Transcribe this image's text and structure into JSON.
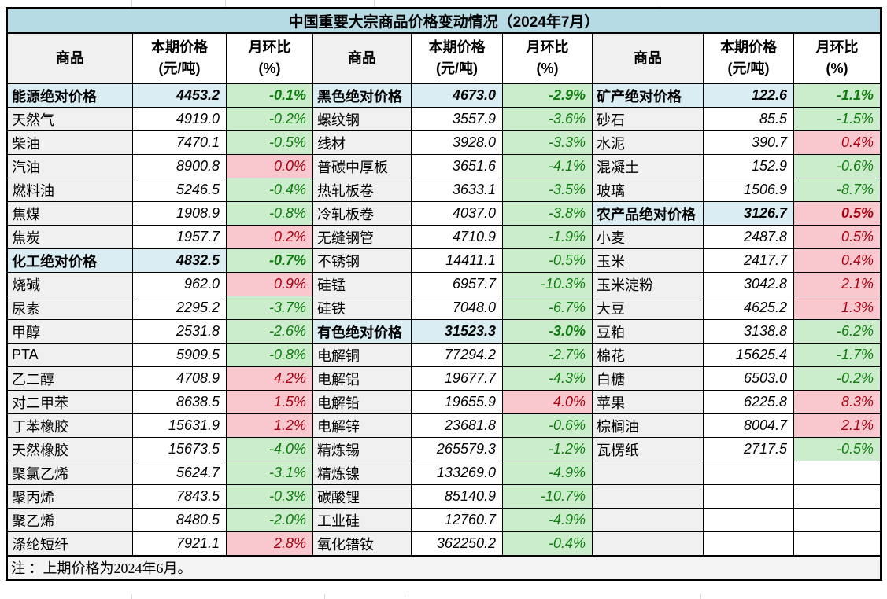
{
  "colors": {
    "title_bg": "#b6dbe4",
    "section_bg": "#d9edf3",
    "name_column_bg": "#f0f0f0",
    "decrease_bg": "#cbedcb",
    "decrease_text": "#0f7b0f",
    "increase_bg": "#f8c8ce",
    "increase_text": "#a60012",
    "border": "#000000"
  },
  "chart_data": {
    "type": "table",
    "title": "中国重要大宗商品价格变动情况（2024年7月）",
    "note": "注 ：上期价格为2024年6月。",
    "column_headers": {
      "commodity": "商品",
      "price": [
        "本期价格",
        "(元/吨)"
      ],
      "mom": [
        "月环比",
        "(%)"
      ]
    },
    "groups": [
      {
        "rows": [
          {
            "name": "能源绝对价格",
            "price": "4453.2",
            "mom": "-0.1%",
            "style": "section",
            "trend": "down"
          },
          {
            "name": "天然气",
            "price": "4919.0",
            "mom": "-0.2%",
            "style": "item",
            "trend": "down"
          },
          {
            "name": "柴油",
            "price": "7470.1",
            "mom": "-0.5%",
            "style": "item",
            "trend": "down"
          },
          {
            "name": "汽油",
            "price": "8900.8",
            "mom": "0.0%",
            "style": "item",
            "trend": "up"
          },
          {
            "name": "燃料油",
            "price": "5246.5",
            "mom": "-0.4%",
            "style": "item",
            "trend": "down"
          },
          {
            "name": "焦煤",
            "price": "1908.9",
            "mom": "-0.8%",
            "style": "item",
            "trend": "down"
          },
          {
            "name": "焦炭",
            "price": "1957.7",
            "mom": "0.2%",
            "style": "item",
            "trend": "up"
          },
          {
            "name": "化工绝对价格",
            "price": "4832.5",
            "mom": "-0.7%",
            "style": "section",
            "trend": "down"
          },
          {
            "name": "烧碱",
            "price": "962.0",
            "mom": "0.9%",
            "style": "item",
            "trend": "up"
          },
          {
            "name": "尿素",
            "price": "2295.2",
            "mom": "-3.7%",
            "style": "item",
            "trend": "down"
          },
          {
            "name": "甲醇",
            "price": "2531.8",
            "mom": "-2.6%",
            "style": "item",
            "trend": "down"
          },
          {
            "name": "PTA",
            "price": "5909.5",
            "mom": "-0.8%",
            "style": "item",
            "trend": "down"
          },
          {
            "name": "乙二醇",
            "price": "4708.9",
            "mom": "4.2%",
            "style": "item",
            "trend": "up"
          },
          {
            "name": "对二甲苯",
            "price": "8638.5",
            "mom": "1.5%",
            "style": "item",
            "trend": "up"
          },
          {
            "name": "丁苯橡胶",
            "price": "15631.9",
            "mom": "1.2%",
            "style": "item",
            "trend": "up"
          },
          {
            "name": "天然橡胶",
            "price": "15673.5",
            "mom": "-4.0%",
            "style": "item",
            "trend": "down"
          },
          {
            "name": "聚氯乙烯",
            "price": "5624.7",
            "mom": "-3.1%",
            "style": "item",
            "trend": "down"
          },
          {
            "name": "聚丙烯",
            "price": "7843.5",
            "mom": "-0.3%",
            "style": "item",
            "trend": "down"
          },
          {
            "name": "聚乙烯",
            "price": "8480.5",
            "mom": "-2.0%",
            "style": "item",
            "trend": "down"
          },
          {
            "name": "涤纶短纤",
            "price": "7921.1",
            "mom": "2.8%",
            "style": "item",
            "trend": "up"
          }
        ]
      },
      {
        "rows": [
          {
            "name": "黑色绝对价格",
            "price": "4673.0",
            "mom": "-2.9%",
            "style": "section",
            "trend": "down"
          },
          {
            "name": "螺纹钢",
            "price": "3557.9",
            "mom": "-3.6%",
            "style": "item",
            "trend": "down"
          },
          {
            "name": "线材",
            "price": "3928.0",
            "mom": "-3.3%",
            "style": "item",
            "trend": "down"
          },
          {
            "name": "普碳中厚板",
            "price": "3651.6",
            "mom": "-4.1%",
            "style": "item",
            "trend": "down"
          },
          {
            "name": "热轧板卷",
            "price": "3633.1",
            "mom": "-3.5%",
            "style": "item",
            "trend": "down"
          },
          {
            "name": "冷轧板卷",
            "price": "4037.0",
            "mom": "-3.8%",
            "style": "item",
            "trend": "down"
          },
          {
            "name": "无缝钢管",
            "price": "4710.9",
            "mom": "-1.9%",
            "style": "item",
            "trend": "down"
          },
          {
            "name": "不锈钢",
            "price": "14411.1",
            "mom": "-0.5%",
            "style": "item",
            "trend": "down"
          },
          {
            "name": "硅锰",
            "price": "6957.7",
            "mom": "-10.3%",
            "style": "item",
            "trend": "down"
          },
          {
            "name": "硅铁",
            "price": "7048.0",
            "mom": "-6.7%",
            "style": "item",
            "trend": "down"
          },
          {
            "name": "有色绝对价格",
            "price": "31523.3",
            "mom": "-3.0%",
            "style": "section",
            "trend": "down"
          },
          {
            "name": "电解铜",
            "price": "77294.2",
            "mom": "-2.7%",
            "style": "item",
            "trend": "down"
          },
          {
            "name": "电解铝",
            "price": "19677.7",
            "mom": "-4.3%",
            "style": "item",
            "trend": "down"
          },
          {
            "name": "电解铅",
            "price": "19655.9",
            "mom": "4.0%",
            "style": "item",
            "trend": "up"
          },
          {
            "name": "电解锌",
            "price": "23681.8",
            "mom": "-0.6%",
            "style": "item",
            "trend": "down"
          },
          {
            "name": "精炼锡",
            "price": "265579.3",
            "mom": "-1.2%",
            "style": "item",
            "trend": "down"
          },
          {
            "name": "精炼镍",
            "price": "133269.0",
            "mom": "-4.9%",
            "style": "item",
            "trend": "down"
          },
          {
            "name": "碳酸锂",
            "price": "85140.9",
            "mom": "-10.7%",
            "style": "item",
            "trend": "down"
          },
          {
            "name": "工业硅",
            "price": "12760.7",
            "mom": "-4.9%",
            "style": "item",
            "trend": "down"
          },
          {
            "name": "氧化镨钕",
            "price": "362250.2",
            "mom": "-0.4%",
            "style": "item",
            "trend": "down"
          }
        ]
      },
      {
        "rows": [
          {
            "name": "矿产绝对价格",
            "price": "122.6",
            "mom": "-1.1%",
            "style": "section",
            "trend": "down"
          },
          {
            "name": "砂石",
            "price": "85.5",
            "mom": "-1.5%",
            "style": "item",
            "trend": "down"
          },
          {
            "name": "水泥",
            "price": "390.7",
            "mom": "0.4%",
            "style": "item",
            "trend": "up"
          },
          {
            "name": "混凝土",
            "price": "152.9",
            "mom": "-0.6%",
            "style": "item",
            "trend": "down"
          },
          {
            "name": "玻璃",
            "price": "1506.9",
            "mom": "-8.7%",
            "style": "item",
            "trend": "down"
          },
          {
            "name": "农产品绝对价格",
            "price": "3126.7",
            "mom": "0.5%",
            "style": "section",
            "trend": "up"
          },
          {
            "name": "小麦",
            "price": "2487.8",
            "mom": "0.5%",
            "style": "item",
            "trend": "up"
          },
          {
            "name": "玉米",
            "price": "2417.7",
            "mom": "0.4%",
            "style": "item",
            "trend": "up"
          },
          {
            "name": "玉米淀粉",
            "price": "3042.8",
            "mom": "2.1%",
            "style": "item",
            "trend": "up"
          },
          {
            "name": "大豆",
            "price": "4625.2",
            "mom": "1.3%",
            "style": "item",
            "trend": "up"
          },
          {
            "name": "豆粕",
            "price": "3138.8",
            "mom": "-6.2%",
            "style": "item",
            "trend": "down"
          },
          {
            "name": "棉花",
            "price": "15625.4",
            "mom": "-1.7%",
            "style": "item",
            "trend": "down"
          },
          {
            "name": "白糖",
            "price": "6503.0",
            "mom": "-0.2%",
            "style": "item",
            "trend": "down"
          },
          {
            "name": "苹果",
            "price": "6225.8",
            "mom": "8.3%",
            "style": "item",
            "trend": "up"
          },
          {
            "name": "棕榈油",
            "price": "8004.7",
            "mom": "2.1%",
            "style": "item",
            "trend": "up"
          },
          {
            "name": "瓦楞纸",
            "price": "2717.5",
            "mom": "-0.5%",
            "style": "item",
            "trend": "down"
          },
          {
            "name": "",
            "price": "",
            "mom": "",
            "style": "empty",
            "trend": ""
          },
          {
            "name": "",
            "price": "",
            "mom": "",
            "style": "empty",
            "trend": ""
          },
          {
            "name": "",
            "price": "",
            "mom": "",
            "style": "empty",
            "trend": ""
          },
          {
            "name": "",
            "price": "",
            "mom": "",
            "style": "empty",
            "trend": ""
          }
        ]
      }
    ]
  }
}
